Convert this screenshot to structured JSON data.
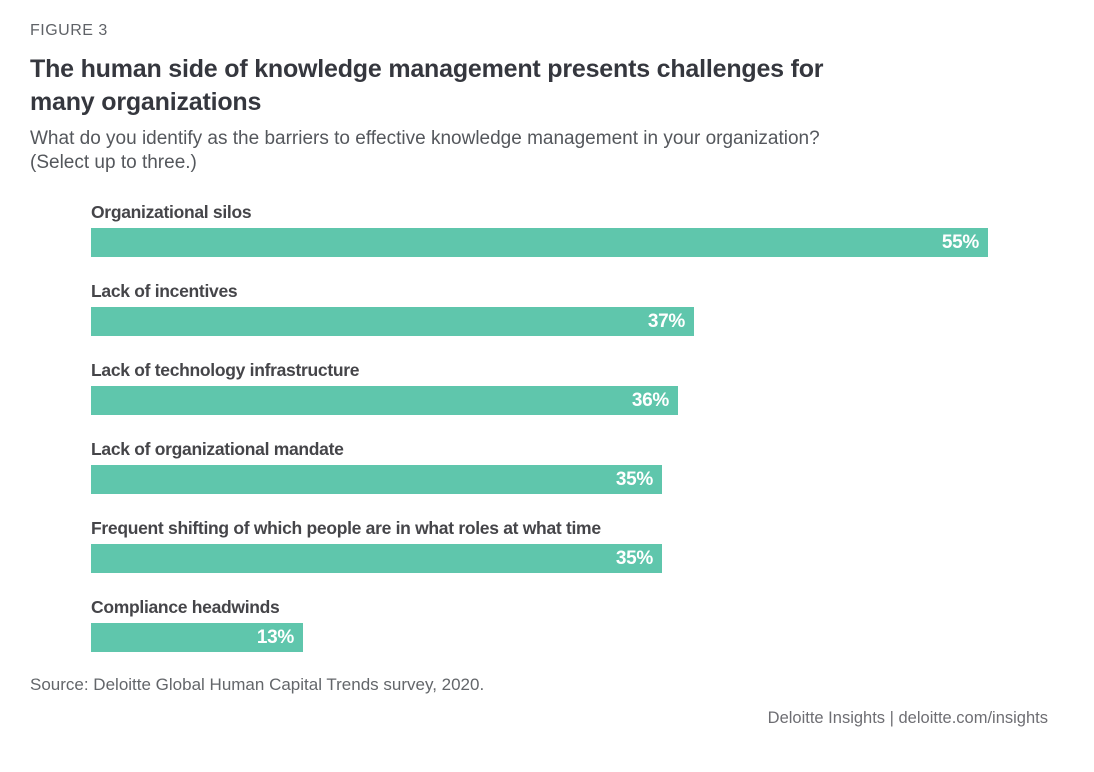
{
  "header": {
    "figure_label": "FIGURE 3",
    "title_lines": [
      "The human side of knowledge management presents challenges for",
      "many organizations"
    ],
    "subtitle_lines": [
      "What do you identify as the barriers to effective knowledge management in your organization?",
      "(Select up to three.)"
    ]
  },
  "chart_data": {
    "type": "bar",
    "orientation": "horizontal",
    "title": "The human side of knowledge management presents challenges for many organizations",
    "categories": [
      "Organizational silos",
      "Lack of incentives",
      "Lack of technology infrastructure",
      "Lack of organizational mandate",
      "Frequent shifting of which people are in what roles at what time",
      "Compliance headwinds"
    ],
    "values": [
      55,
      37,
      36,
      35,
      35,
      13
    ],
    "value_suffix": "%",
    "value_labels": [
      "55%",
      "37%",
      "36%",
      "35%",
      "35%",
      "13%"
    ],
    "xlim": [
      0,
      55
    ],
    "grid": false,
    "legend": false,
    "bar_color": "#5fc6ac",
    "value_label_color": "#ffffff"
  },
  "colors": {
    "accent_teal": "#5fc6ac",
    "title_text": "#35373e",
    "muted_text": "#63666a"
  },
  "source": {
    "text": "Source: Deloitte Global Human Capital Trends survey, 2020."
  },
  "footer": {
    "text": "Deloitte Insights | deloitte.com/insights"
  }
}
